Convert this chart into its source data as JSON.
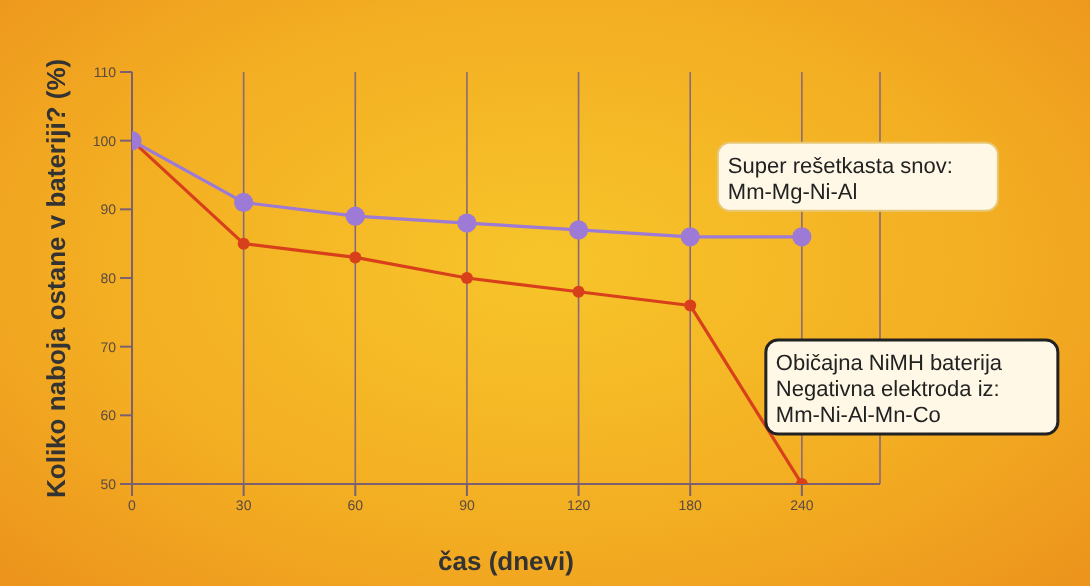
{
  "chart_data": {
    "type": "line",
    "xlabel": "čas (dnevi)",
    "ylabel": "Koliko naboja ostane v bateriji? (%)",
    "categories": [
      "0",
      "30",
      "60",
      "90",
      "120",
      "180",
      "240"
    ],
    "series": [
      {
        "name": "Super rešetkasta snov:\nMm-Mg-Ni-Al",
        "color": "#9c7ad6",
        "values": [
          100,
          91,
          89,
          88,
          87,
          86,
          86
        ]
      },
      {
        "name": "Običajna NiMH baterija\nNegativna elektroda iz:\nMm-Ni-Al-Mn-Co",
        "color": "#d8401c",
        "values": [
          100,
          85,
          83,
          80,
          78,
          76,
          50
        ]
      }
    ],
    "ylim": [
      50,
      110
    ],
    "yticks": [
      50,
      60,
      70,
      80,
      90,
      100,
      110
    ],
    "grid": "x",
    "legend": false,
    "marker": "circle",
    "line_style": "solid"
  }
}
